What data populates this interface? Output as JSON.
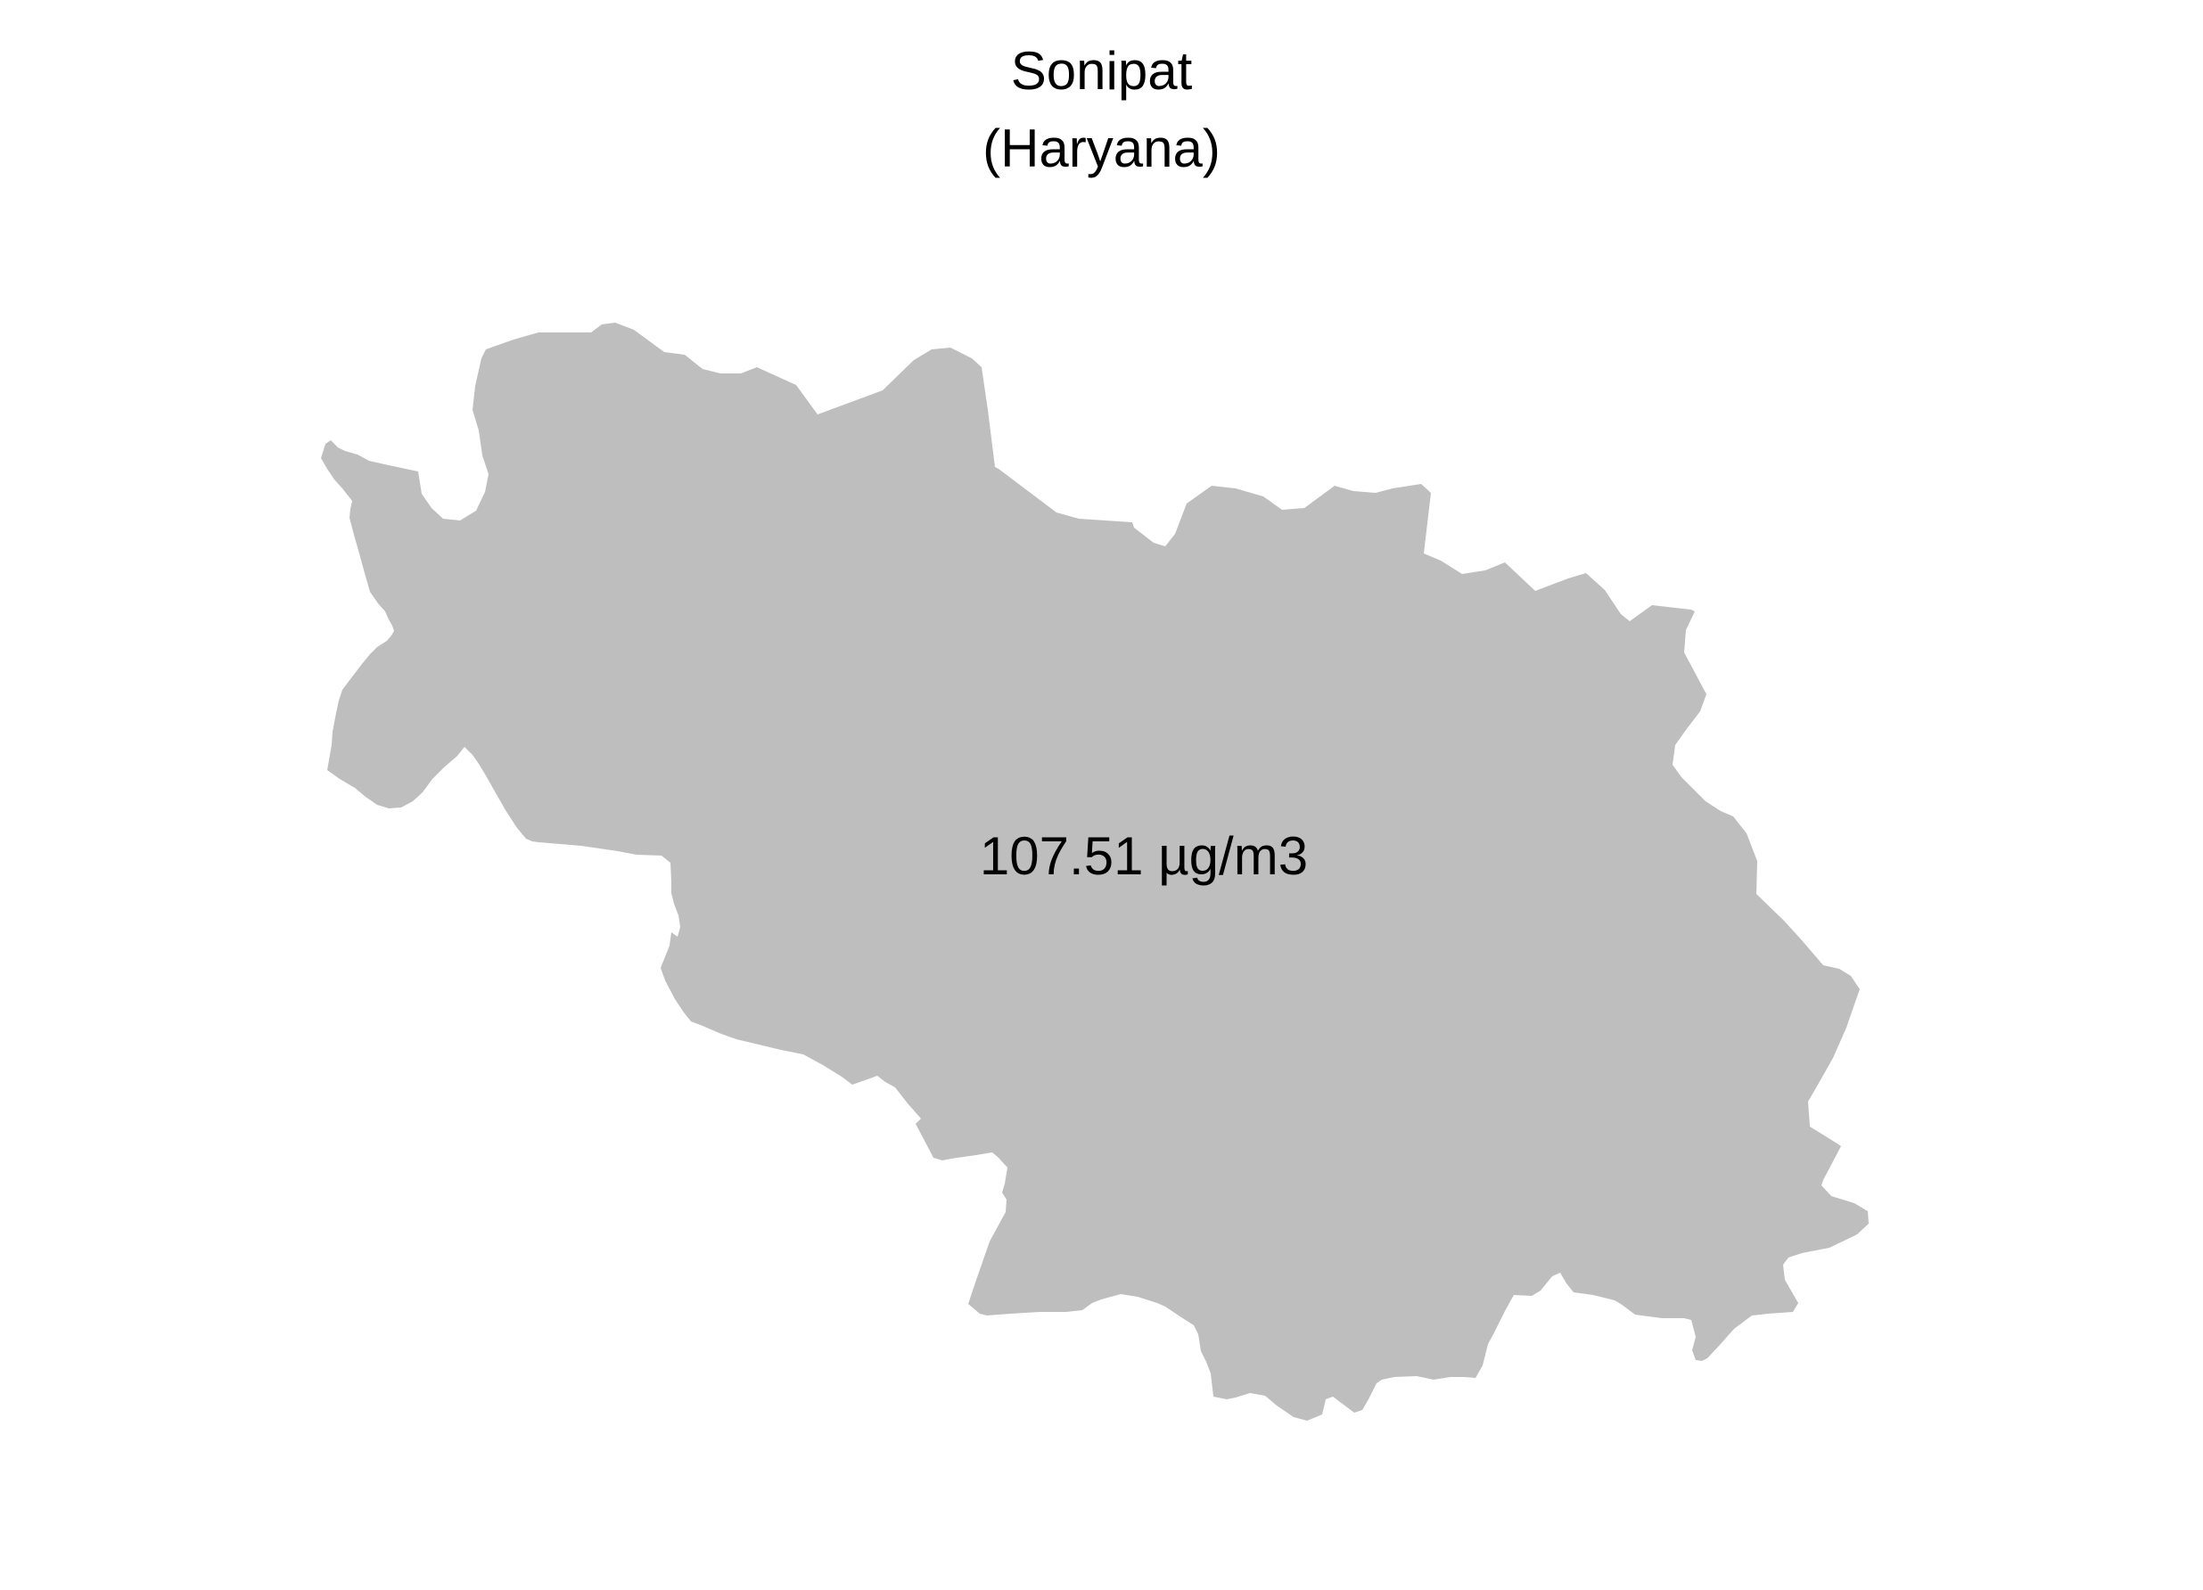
{
  "map": {
    "title": "Sonipat",
    "subtitle": "(Haryana)",
    "region_label": "107.51 µg/m3",
    "colors": {
      "region_fill": "#bebebe",
      "background": "#ffffff",
      "text": "#000000"
    }
  }
}
